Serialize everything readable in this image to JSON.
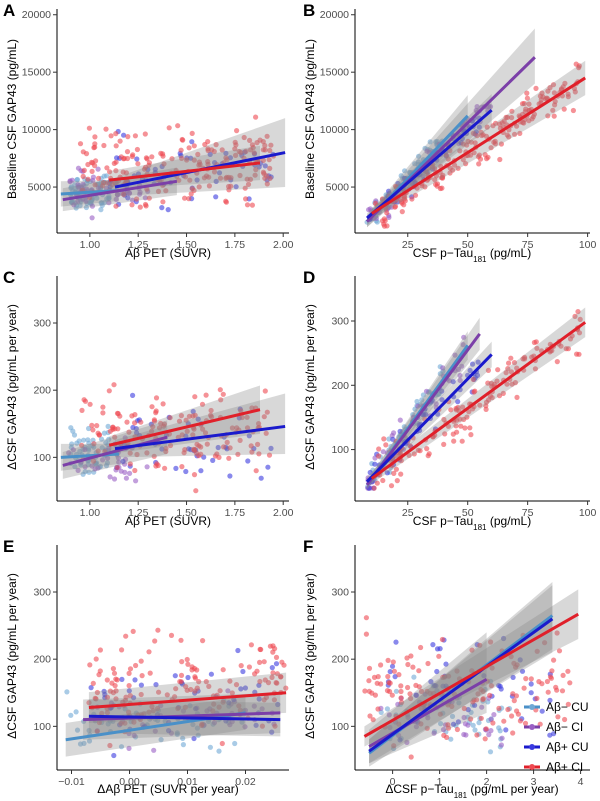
{
  "legend": [
    {
      "label": "Aβ− CU",
      "color": "#4a90c8",
      "point_color": "#6fa8d6"
    },
    {
      "label": "Aβ− CI",
      "color": "#7b3fa8",
      "point_color": "#9a5fc4"
    },
    {
      "label": "Aβ+ CU",
      "color": "#1a1acc",
      "point_color": "#3a3ae0"
    },
    {
      "label": "Aβ+ CI",
      "color": "#e0202a",
      "point_color": "#ee4a52"
    }
  ],
  "chart_data": [
    {
      "panel": "A",
      "type": "scatter",
      "xlabel": "Aβ PET (SUVR)",
      "ylabel": "Baseline CSF GAP43 (pg/mL)",
      "xlim": [
        0.83,
        2.03
      ],
      "ylim": [
        1000,
        20500
      ],
      "xticks": [
        1.0,
        1.25,
        1.5,
        1.75,
        2.0
      ],
      "xtick_labels": [
        "1.00",
        "1.25",
        "1.50",
        "1.75",
        "2.00"
      ],
      "yticks": [
        5000,
        10000,
        15000,
        20000
      ],
      "ytick_labels": [
        "5000",
        "10000",
        "15000",
        "20000"
      ],
      "fits": [
        {
          "group": 0,
          "x": [
            0.85,
            1.15
          ],
          "y": [
            4400,
            4700
          ],
          "ci": [
            [
              3300,
              5500
            ],
            [
              3800,
              5600
            ]
          ]
        },
        {
          "group": 1,
          "x": [
            0.86,
            1.45
          ],
          "y": [
            3900,
            5500
          ],
          "ci": [
            [
              2900,
              4900
            ],
            [
              4300,
              6700
            ]
          ]
        },
        {
          "group": 2,
          "x": [
            1.13,
            2.01
          ],
          "y": [
            5000,
            8000
          ],
          "ci": [
            [
              4200,
              5800
            ],
            [
              5000,
              11000
            ]
          ]
        },
        {
          "group": 3,
          "x": [
            1.1,
            1.88
          ],
          "y": [
            5600,
            7100
          ],
          "ci": [
            [
              4800,
              6400
            ],
            [
              5600,
              8600
            ]
          ]
        }
      ],
      "clusters": [
        {
          "group": 0,
          "n": 80,
          "x": [
            0.9,
            1.1
          ],
          "y": [
            2000,
            8500
          ],
          "skew": 0
        },
        {
          "group": 1,
          "n": 50,
          "x": [
            0.88,
            1.3
          ],
          "y": [
            2000,
            9000
          ],
          "skew": 0
        },
        {
          "group": 2,
          "n": 60,
          "x": [
            1.1,
            1.95
          ],
          "y": [
            2500,
            14000
          ],
          "skew": 0
        },
        {
          "group": 3,
          "n": 200,
          "x": [
            0.95,
            1.95
          ],
          "y": [
            2000,
            15000
          ],
          "skew": 0
        }
      ]
    },
    {
      "panel": "B",
      "type": "scatter",
      "xlabel": "CSF p−Tau181 (pg/mL)",
      "xlabel_main": "CSF p−Tau",
      "xlabel_sub": "181",
      "xlabel_tail": " (pg/mL)",
      "ylabel": "Baseline CSF GAP43 (pg/mL)",
      "xlim": [
        3,
        101
      ],
      "ylim": [
        1000,
        20500
      ],
      "xticks": [
        25,
        50,
        75,
        100
      ],
      "xtick_labels": [
        "25",
        "50",
        "75",
        "100"
      ],
      "yticks": [
        5000,
        10000,
        15000,
        20000
      ],
      "ytick_labels": [
        "5000",
        "10000",
        "15000",
        "20000"
      ],
      "fits": [
        {
          "group": 0,
          "x": [
            8,
            50
          ],
          "y": [
            2000,
            11200
          ],
          "ci": [
            [
              1500,
              2500
            ],
            [
              9500,
              13000
            ]
          ]
        },
        {
          "group": 1,
          "x": [
            8,
            78
          ],
          "y": [
            2000,
            16300
          ],
          "ci": [
            [
              1500,
              2500
            ],
            [
              14000,
              18800
            ]
          ]
        },
        {
          "group": 2,
          "x": [
            8,
            60
          ],
          "y": [
            2300,
            11700
          ],
          "ci": [
            [
              1900,
              2700
            ],
            [
              10300,
              13100
            ]
          ]
        },
        {
          "group": 3,
          "x": [
            10,
            99
          ],
          "y": [
            2700,
            14500
          ],
          "ci": [
            [
              2200,
              3200
            ],
            [
              13000,
              16000
            ]
          ]
        }
      ],
      "clusters": [
        {
          "group": 0,
          "n": 80,
          "x": [
            8,
            40
          ],
          "y": [
            1500,
            9000
          ],
          "skew": 230
        },
        {
          "group": 1,
          "n": 60,
          "x": [
            8,
            60
          ],
          "y": [
            1500,
            12000
          ],
          "skew": 200
        },
        {
          "group": 2,
          "n": 60,
          "x": [
            8,
            55
          ],
          "y": [
            1500,
            11000
          ],
          "skew": 190
        },
        {
          "group": 3,
          "n": 200,
          "x": [
            10,
            97
          ],
          "y": [
            1500,
            16000
          ],
          "skew": 130
        }
      ]
    },
    {
      "panel": "C",
      "type": "scatter",
      "xlabel": "Aβ PET (SUVR)",
      "ylabel": "ΔCSF GAP43 (pg/mL per year)",
      "xlim": [
        0.83,
        2.03
      ],
      "ylim": [
        35,
        370
      ],
      "xticks": [
        1.0,
        1.25,
        1.5,
        1.75,
        2.0
      ],
      "xtick_labels": [
        "1.00",
        "1.25",
        "1.50",
        "1.75",
        "2.00"
      ],
      "yticks": [
        100,
        200,
        300
      ],
      "ytick_labels": [
        "100",
        "200",
        "300"
      ],
      "fits": [
        {
          "group": 0,
          "x": [
            0.85,
            1.15
          ],
          "y": [
            100,
            105
          ],
          "ci": [
            [
              80,
              120
            ],
            [
              90,
              120
            ]
          ]
        },
        {
          "group": 1,
          "x": [
            0.86,
            1.4
          ],
          "y": [
            88,
            130
          ],
          "ci": [
            [
              68,
              108
            ],
            [
              105,
              155
            ]
          ]
        },
        {
          "group": 2,
          "x": [
            1.13,
            2.01
          ],
          "y": [
            113,
            146
          ],
          "ci": [
            [
              100,
              126
            ],
            [
              105,
              195
            ]
          ]
        },
        {
          "group": 3,
          "x": [
            1.1,
            1.88
          ],
          "y": [
            118,
            171
          ],
          "ci": [
            [
              105,
              131
            ],
            [
              135,
              207
            ]
          ]
        }
      ],
      "clusters": [
        {
          "group": 0,
          "n": 60,
          "x": [
            0.9,
            1.1
          ],
          "y": [
            50,
            200
          ],
          "skew": 0
        },
        {
          "group": 1,
          "n": 30,
          "x": [
            0.88,
            1.3
          ],
          "y": [
            45,
            180
          ],
          "skew": 0
        },
        {
          "group": 2,
          "n": 50,
          "x": [
            1.1,
            2.0
          ],
          "y": [
            45,
            260
          ],
          "skew": 0
        },
        {
          "group": 3,
          "n": 150,
          "x": [
            0.95,
            1.95
          ],
          "y": [
            45,
            290
          ],
          "skew": 0
        }
      ]
    },
    {
      "panel": "D",
      "type": "scatter",
      "xlabel": "CSF p−Tau181 (pg/mL)",
      "xlabel_main": "CSF p−Tau",
      "xlabel_sub": "181",
      "xlabel_tail": " (pg/mL)",
      "ylabel": "ΔCSF GAP43 (pg/mL per year)",
      "xlim": [
        3,
        101
      ],
      "ylim": [
        20,
        370
      ],
      "xticks": [
        25,
        50,
        75,
        100
      ],
      "xtick_labels": [
        "25",
        "50",
        "75",
        "100"
      ],
      "yticks": [
        100,
        200,
        300
      ],
      "ytick_labels": [
        "100",
        "200",
        "300"
      ],
      "fits": [
        {
          "group": 0,
          "x": [
            8,
            50
          ],
          "y": [
            45,
            262
          ],
          "ci": [
            [
              38,
              52
            ],
            [
              240,
              284
            ]
          ]
        },
        {
          "group": 1,
          "x": [
            8,
            55
          ],
          "y": [
            45,
            280
          ],
          "ci": [
            [
              38,
              52
            ],
            [
              255,
              305
            ]
          ]
        },
        {
          "group": 2,
          "x": [
            8,
            60
          ],
          "y": [
            50,
            248
          ],
          "ci": [
            [
              43,
              57
            ],
            [
              228,
              268
            ]
          ]
        },
        {
          "group": 3,
          "x": [
            10,
            99
          ],
          "y": [
            55,
            298
          ],
          "ci": [
            [
              47,
              63
            ],
            [
              275,
              321
            ]
          ]
        }
      ],
      "clusters": [
        {
          "group": 0,
          "n": 60,
          "x": [
            8,
            40
          ],
          "y": [
            40,
            240
          ],
          "skew": 5
        },
        {
          "group": 1,
          "n": 40,
          "x": [
            8,
            50
          ],
          "y": [
            40,
            340
          ],
          "skew": 5
        },
        {
          "group": 2,
          "n": 50,
          "x": [
            8,
            55
          ],
          "y": [
            40,
            280
          ],
          "skew": 4
        },
        {
          "group": 3,
          "n": 150,
          "x": [
            10,
            97
          ],
          "y": [
            40,
            360
          ],
          "skew": 3
        }
      ]
    },
    {
      "panel": "E",
      "type": "scatter",
      "xlabel": "ΔAβ PET (SUVR per year)",
      "ylabel": "ΔCSF GAP43 (pg/mL per year)",
      "xlim": [
        -0.0125,
        0.0275
      ],
      "ylim": [
        35,
        370
      ],
      "xticks": [
        -0.01,
        0.0,
        0.01,
        0.02
      ],
      "xtick_labels": [
        "−0.01",
        "0.00",
        "0.01",
        "0.02"
      ],
      "yticks": [
        100,
        200,
        300
      ],
      "ytick_labels": [
        "100",
        "200",
        "300"
      ],
      "fits": [
        {
          "group": 0,
          "x": [
            -0.011,
            0.02
          ],
          "y": [
            80,
            120
          ],
          "ci": [
            [
              55,
              105
            ],
            [
              95,
              145
            ]
          ]
        },
        {
          "group": 1,
          "x": [
            -0.008,
            0.026
          ],
          "y": [
            110,
            120
          ],
          "ci": [
            [
              80,
              140
            ],
            [
              90,
              150
            ]
          ]
        },
        {
          "group": 2,
          "x": [
            -0.007,
            0.026
          ],
          "y": [
            115,
            110
          ],
          "ci": [
            [
              90,
              140
            ],
            [
              85,
              135
            ]
          ]
        },
        {
          "group": 3,
          "x": [
            -0.007,
            0.027
          ],
          "y": [
            128,
            150
          ],
          "ci": [
            [
              105,
              151
            ],
            [
              120,
              180
            ]
          ]
        }
      ],
      "clusters": [
        {
          "group": 0,
          "n": 60,
          "x": [
            -0.011,
            0.02
          ],
          "y": [
            45,
            210
          ],
          "skew": 0
        },
        {
          "group": 1,
          "n": 40,
          "x": [
            -0.008,
            0.026
          ],
          "y": [
            45,
            230
          ],
          "skew": 0
        },
        {
          "group": 2,
          "n": 50,
          "x": [
            -0.007,
            0.026
          ],
          "y": [
            40,
            300
          ],
          "skew": 0
        },
        {
          "group": 3,
          "n": 150,
          "x": [
            -0.007,
            0.027
          ],
          "y": [
            40,
            350
          ],
          "skew": 0
        }
      ]
    },
    {
      "panel": "F",
      "type": "scatter",
      "xlabel": "ΔCSF p−Tau181 (pg/mL per year)",
      "xlabel_main": "ΔCSF p−Tau",
      "xlabel_sub": "181",
      "xlabel_tail": " (pg/mL per year)",
      "ylabel": "ΔCSF GAP43 (pg/mL per year)",
      "xlim": [
        -0.8,
        4.2
      ],
      "ylim": [
        35,
        370
      ],
      "xticks": [
        0,
        1,
        2,
        3,
        4
      ],
      "xtick_labels": [
        "0",
        "1",
        "2",
        "3",
        "4"
      ],
      "yticks": [
        100,
        200,
        300
      ],
      "ytick_labels": [
        "100",
        "200",
        "300"
      ],
      "fits": [
        {
          "group": 0,
          "x": [
            -0.5,
            3.4
          ],
          "y": [
            60,
            265
          ],
          "ci": [
            [
              40,
              80
            ],
            [
              215,
              315
            ]
          ]
        },
        {
          "group": 1,
          "x": [
            -0.5,
            2.0
          ],
          "y": [
            70,
            170
          ],
          "ci": [
            [
              45,
              95
            ],
            [
              120,
              240
            ]
          ]
        },
        {
          "group": 2,
          "x": [
            -0.5,
            3.4
          ],
          "y": [
            63,
            260
          ],
          "ci": [
            [
              45,
              81
            ],
            [
              210,
              310
            ]
          ]
        },
        {
          "group": 3,
          "x": [
            -0.6,
            3.95
          ],
          "y": [
            85,
            267
          ],
          "ci": [
            [
              70,
              100
            ],
            [
              230,
              304
            ]
          ]
        }
      ],
      "clusters": [
        {
          "group": 0,
          "n": 50,
          "x": [
            -0.3,
            2.5
          ],
          "y": [
            45,
            250
          ],
          "skew": 0
        },
        {
          "group": 1,
          "n": 40,
          "x": [
            -0.3,
            2.5
          ],
          "y": [
            40,
            230
          ],
          "skew": 0
        },
        {
          "group": 2,
          "n": 50,
          "x": [
            -0.2,
            3.5
          ],
          "y": [
            40,
            340
          ],
          "skew": 0
        },
        {
          "group": 3,
          "n": 150,
          "x": [
            -0.6,
            3.8
          ],
          "y": [
            40,
            360
          ],
          "skew": 0
        }
      ]
    }
  ]
}
